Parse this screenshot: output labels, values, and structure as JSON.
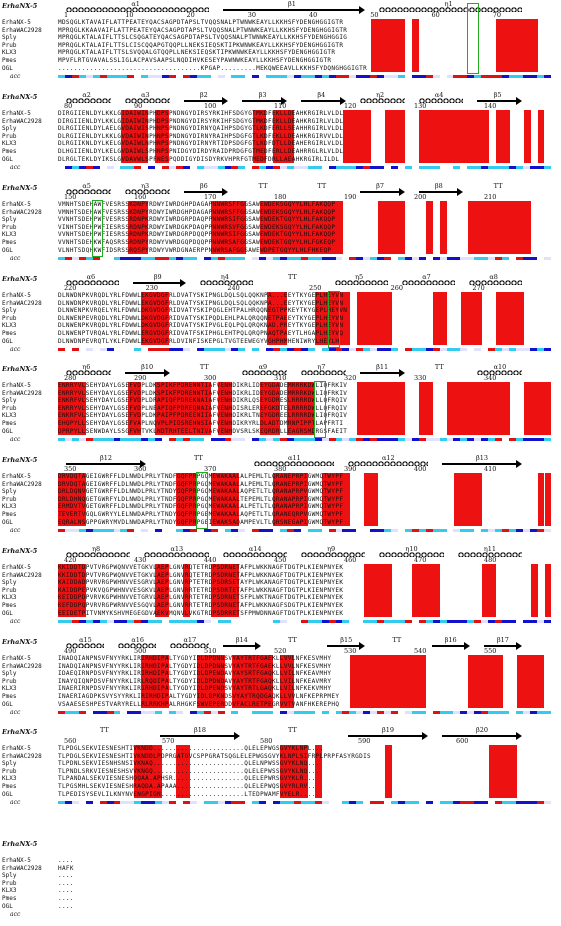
{
  "reference_label": "ErhaNX-5",
  "sequence_names": [
    "ErhaNX-5",
    "ErhaWAC2928",
    "Sply",
    "Prub",
    "KLX3",
    "Pmes",
    "OGL"
  ],
  "acc_label": "acc",
  "colors": {
    "identical_bg": "#e11111",
    "similar_text": "#d00000",
    "box": "#6e6ec8",
    "highlight": "#22aa22",
    "acc_high": "#1111cc",
    "acc_mid": "#33ccee",
    "acc_low": "#e0e0ff",
    "acc_buried": "#ffffff"
  },
  "blocks": [
    {
      "numbers": [
        "1",
        "10",
        "20",
        "30",
        "40",
        "50",
        "60",
        "70"
      ],
      "ss": [
        {
          "t": "helix",
          "label": "α1"
        },
        {
          "t": "arrow",
          "label": "β1"
        },
        {
          "t": "helix",
          "label": "η1"
        }
      ],
      "seqs": [
        "MDSQGLKTAVAIFLATTPEATEYQACSAGPDTAPSLTVQQSNALPTWNWKEAYLLKKHSFYDENGHGGIGTR",
        "MPRQGLKKAAVAIFLATTPEATEYQACSAGPDTAPSLTVQQSNALPTWNWKEAYLLKKHSFYDENGHGGIGTR",
        "MPRQGLKTALAIFLTTSLCSQGATEYQACSAGPDTAPSLTVQQSNALPTWNWKEAYLLKKHSFYDENGHGGIG",
        "MPRQGLKTALAIFLTTSLCISCQQAPGTQQPLLNEKSIEQSKTIPKWNWKEAYLLKKHSFYDENGHGGIGTR",
        "MPRQGLKTALAIFLTTSLSVQQALGTQQPLLNEKSIEQSKTIPKWNWKEAYLLKKHSFYDENGHGGIGTR",
        "MPVFLRTGVAVALSSLIGLACPAVSAAPSLNQDIHVKESEYPAWNWKEAYLLKKHSFYDENGHGGIGTR",
        "....................................KPGAP.........MEKQWEEAVLLKKHSFYDQNGHGGIGTR"
      ]
    },
    {
      "numbers": [
        "80",
        "90",
        "100",
        "110",
        "120",
        "130",
        "140"
      ],
      "ss": [
        {
          "t": "helix",
          "label": "α2"
        },
        {
          "t": "helix",
          "label": "α3"
        },
        {
          "t": "arrow",
          "label": "β2"
        },
        {
          "t": "arrow",
          "label": "β3"
        },
        {
          "t": "arrow",
          "label": "β4"
        },
        {
          "t": "helix",
          "label": "η2"
        },
        {
          "t": "helix",
          "label": "α4"
        },
        {
          "t": "arrow",
          "label": "β5"
        }
      ],
      "seqs": [
        "DIRGIIENLDYLKKLGIDAIWINPHDPSPNDNGYDIRSYRKIHFSDGYGTMKDFEKLLDEAHKRGIRLVLDL",
        "DIRGIIENLDYLKKLGIDAIWINPHDPSPNDNGYDIRSYRKIHFSDGYGTMKDFEKLLDEAHKRGIRLVLDL",
        "DLRGIIENLDYLAELGVDAIWISPHNPSPNDNGYDIRNYQAIHPSDGYGTLKDFERLLSEAHHRGIRLVLDL",
        "DLRGIIENLDYLKKLGVDAIWINPHNPSPNDNGYDIRNYRAIHPSDGFGTLKDFEKLLDEAHKRGIRVVLDL",
        "DLRGIIKNLDYLKELGVDAIWLNPHNPSPNDNGYDIRNYRTIDPSDGFGTLKDFDTLLDEAHERGIRLVLDL",
        "DLHGIIENLDYLKELGVDAIWLSPHNPSPNIDGYDIRDYRAIDPRDGFGTMEDFERLLDEAHRRGLRLVLDL",
        "DLRGLTEKLDYIKSLGVDAVWLSPFNESPQDDIGYDISDYRKVHPRFGTMEDFDRLLAEAHKRGIRLILDL"
      ]
    },
    {
      "numbers": [
        "150",
        "160",
        "170",
        "180",
        "190",
        "200",
        "210"
      ],
      "ss": [
        {
          "t": "helix",
          "label": "α5"
        },
        {
          "t": "helix",
          "label": "η3"
        },
        {
          "t": "arrow",
          "label": "β6"
        },
        {
          "t": "tt",
          "label": "TT"
        },
        {
          "t": "tt",
          "label": "TT"
        },
        {
          "t": "arrow",
          "label": "β7"
        },
        {
          "t": "arrow",
          "label": "β8"
        },
        {
          "t": "tt",
          "label": "TT"
        }
      ],
      "seqs": [
        "VMNHTSDEHAWFVESRSSKDNPYRDWYIWRDGHPDAGAPNNWRSFFGGSAWEWDEKSGQYYLHLFAKQQP",
        "VMNHTSDEHAWFVESRSSKDNPYRDWYIWRDGHPDAGAPNNWRSFFGGSAWEWDEKSGQYYLHLFAKQQP",
        "VVNHTSDEHPWFVESRSSRDNPKRDWYIWRDGRPDAQPPNNWRSIFGGSAWEWDEKTGQYYLHLFAKQQP",
        "VINHTSDEHPWFIESRSSRDNPKRDWYIWRDGKPDAQPPNNWRSVFGGSAWEWDEKSGQYYLHLFAKQQP",
        "VVNHTSDEHPWFIESRSSRDNPKRDWYIWRDGRPDQQPPNNWRSIFGGSAWEWDEKTGQYYLHLFAKQQP",
        "VVNHTSDEHKWFAQSRSSRDNPYRDWYVWRDGQPDQQPPNNWRSAFGGSAWEWDEKTGQYYLHLFGKEQP",
        "VLNHTSDQHKWFIDSRSSRQSPYRDWYVWRDGNAERPPNNWRSAFGGSAWEWDPETGQYYLHLFHKEQP"
      ]
    },
    {
      "numbers": [
        "220",
        "230",
        "240",
        "250",
        "260",
        "270"
      ],
      "ss": [
        {
          "t": "helix",
          "label": "α6"
        },
        {
          "t": "arrow",
          "label": "β9"
        },
        {
          "t": "helix",
          "label": "η4"
        },
        {
          "t": "tt",
          "label": "TT"
        },
        {
          "t": "helix",
          "label": "η5"
        },
        {
          "t": "helix",
          "label": "α7"
        },
        {
          "t": "helix",
          "label": "α8"
        }
      ],
      "seqs": [
        "DLNWDNPKVRQDLYRLFDWWLEKGVDGFRLDVATYSKIPNGLDQLSQLQQKNPA...EEYTKYGEPLHEYVN",
        "DLNWDNPKVRQDLYRLFDWWLEKGVDGFRLDVATYSKIPNGLDQLSQLQQKNPA...EEYTKYGEPLHEYVN",
        "DLNWENPKVRQELYRLFDWWLDKGVDGFRIDVATYSKIPQGLEHTPALHRQQNEGTPPKEYTKYGEPLHEYVN",
        "DLNWENPEVRQDLYRLFDWWLDKGVDGFRIDVATYSKIPQDLEHLPALQRQQNETPAEEYTKYGEPLHEYVN",
        "DLNWENPKVRQDLYRLFDWWLDKGVDGFRIDVATYSKIPVGLEQLPQLQRQKNAD.PREYTKYGEPLHEYVN",
        "DLNWENPTVRQALYRLFDWWLERGVDGFRIDVATFSKIPHGLEHTPQLQRQPNAQTPAEYTLHGAPLHEYVQ",
        "DLNWDNPEVRQTLYKLFDWWLEKGVDGFRLDVINFISKEPGLTVGTEEWEGYVGHPHMHENIWRYLHEYLH"
      ]
    },
    {
      "numbers": [
        "280",
        "290",
        "300",
        "310",
        "320",
        "330",
        "340"
      ],
      "ss": [
        {
          "t": "helix",
          "label": "η6"
        },
        {
          "t": "arrow",
          "label": "β10"
        },
        {
          "t": "tt",
          "label": "TT"
        },
        {
          "t": "helix",
          "label": "α9"
        },
        {
          "t": "helix",
          "label": "η7"
        },
        {
          "t": "arrow",
          "label": "β11"
        },
        {
          "t": "tt",
          "label": "TT"
        },
        {
          "t": "helix",
          "label": "α10"
        }
      ],
      "seqs": [
        "ENRRYVLSEHYDAYLGSEFVDPLDKSPIKFPDRENNTIAFVENHDIKRLIDEYGDADEMRRRKDWLIQFRKIV",
        "ENRRYVLSEHYDAYLGSEFVDPLDKSPIKFPDRENNTIAFVENHDIKRLIDEYGDADEMRRRKDWLIQFRKIV",
        "ENKRFVLSEHYDAYLGSEFVDPLDRAPIQFPDREKNAIAFVENHDIKRLQSEYGDRESLRRRRDWLLQFRQIV",
        "ENRRYVLSEHYDAYLGSEFVDPLNEAPIQFPDREQNAIAFVENHDISRLEREFGKDTELRRRRDWLLQFRQIV",
        "ENKRFVLSEHYDAYLGSEFVDPLDKPAIPFPDREENIIAFVENHDIKRLTNEYGDREELRRRRDWLIQFRQIV",
        "EHQPYLLSEHYDAYLGSEFVAPLNQVPLPIDSREHNSIAFVENHDIKRYRLDLADTDMRNPIPPTLAPFRTI",
        "DPRPYLLSENWDAYLSSGFVHTVKLNDTRHTEELTNIVAFVENHDVSRLSKEQRDRLLEAGRSMDRGSFAEIT"
      ]
    },
    {
      "numbers": [
        "350",
        "360",
        "370",
        "380",
        "390",
        "400",
        "410"
      ],
      "ss": [
        {
          "t": "arrow",
          "label": "β12"
        },
        {
          "t": "tt",
          "label": "TT"
        },
        {
          "t": "helix",
          "label": "α11"
        },
        {
          "t": "helix",
          "label": "α12"
        },
        {
          "t": "arrow",
          "label": "β13"
        }
      ],
      "seqs": [
        "DRVDQTAGEIGWRFFLDLNWDLPRLYTNDFGQFPRPGQMEWAKAALALPEMLTLQRANEPRPIGWMQTWYPF",
        "DRVDQTAGEIGWRFFLDLNWDLPRLYTNDFGQFPRPGQMEWAKAALALPEMLTLQRANEPRPIGWMQTWYPF",
        "DRLDQNVGETGWRFFLDLNWDLPRLYTNDYGQFPRPGQMEWAKAALAQPETLTLQRANAPRPVGWMQTWYPF",
        "DRLDHNQGETGWRFYLDLNWDLPRLYTNDFGQFPRPGQMEWAKAALTEPEMLTLQRANAPRPIGWMQTWYPF",
        "ERMDVTVGETGWRFFLDLNWDLPRLYTNDFGQFPRPGQMEWAKAALALPETLTLQRANAPRPIGWMQTWYPF",
        "TEVERTVGQLGWRYYLELNWDAPRLYTNDYGQFPRPGEMEWAKAALAQPETLTLQRANEQRPVGWMQTWYPF",
        "EQRALNSGPPGWRYMVDLNWDAPRLYTNDYGQFPRPGEIEWAKSAQAMPEVLTLQRSNEGAPIGWMQTWYPF"
      ]
    },
    {
      "numbers": [
        "420",
        "430",
        "440",
        "450",
        "460",
        "470",
        "480"
      ],
      "ss": [
        {
          "t": "helix",
          "label": "η8"
        },
        {
          "t": "helix",
          "label": "α13"
        },
        {
          "t": "helix",
          "label": "α14"
        },
        {
          "t": "helix",
          "label": "η9"
        },
        {
          "t": "helix",
          "label": "η10"
        },
        {
          "t": "helix",
          "label": "η11"
        }
      ],
      "seqs": [
        "KKIDDTDPVTVRGPWQNVVETGKVLAEPLGNVRQTETRDPSDRNETAFPLWKKNAGFTDGTPLKIENPNYEK",
        "KKIDDTDPVTVRGPWQNVVETGKVLAEPLGNVRQTETRDPSDRNETAFPLWKKNAGFTDGTPLKIENPNYEK",
        "KAIDDADPVRVRGPWHNVVESGRVLAEPLGNVRPTETRDPSDRSETAYPLWKANAGFTDGTPLKIENPNYEK",
        "KAIDDPEPVKVQGPWHNVVESGKVLAEPLGNVRRTETRDPSDRTETAFPLWKKNAGFTDGTPLKIENPNYEK",
        "KEIDDPDPVRVKGPWHNVVETGRVLAEPLGNVRRTETRDPSDRNETSFPLWKTNAGFTDGTPLKIENPNYEK",
        "KEFDDPQPVRVRGPWRNVVESGQVLAEPLGNVRRTETRDPSDRNETAFPLWKKNAGFSDGTPLKIENPNYEK",
        "EEIDETPITVNMYKSHVMEGEGDVAEKVMQNVLVKGTRDPSDRRETSFPMWDNNAGFTDGTPLKIENPNYEK"
      ]
    },
    {
      "numbers": [
        "490",
        "500",
        "510",
        "520",
        "530",
        "540",
        "550"
      ],
      "ss": [
        {
          "t": "helix",
          "label": "α15"
        },
        {
          "t": "helix",
          "label": "α16"
        },
        {
          "t": "helix",
          "label": "α17"
        },
        {
          "t": "arrow",
          "label": "β14"
        },
        {
          "t": "tt",
          "label": "TT"
        },
        {
          "t": "arrow",
          "label": "β15"
        },
        {
          "t": "tt",
          "label": "TT"
        },
        {
          "t": "arrow",
          "label": "β16"
        },
        {
          "t": "arrow",
          "label": "β17"
        }
      ],
      "seqs": [
        "INADQIANPNSVFNYYRKLIRIRHDIPALTYGDYIDLDPDNNSVYAYTRTFGAEKLLVVLNFKESVMHY",
        "INADQIANPNSVFNYYRKLIRIRHDIPALTYGDYIDLDPDNNSVYAYTRTFGAEKLLVVLNFKESVMHY",
        "IDAEQIRNPDSVFNYYRKLIRIRHDIPALTYGDYIDLDPENDAVYAYSRTFGAQKLLVILNFKEAVMHY",
        "INAYQIQNPDSVFNYYRKLIRLRQDIPALTYGDYIDLDPDNDAVYAYTRTFGAQKLLVILNFKEAVMRY",
        "INAERIRNPDSVFNYYRKLIRIRHDIPALTYGDYIDLDPENDSVYAYTRTLGAQKLLVILNFKEKVMHY",
        "INAERIAGDPKSVYSYYRKLIRIRHDIPALTYGDYIDLDPKNDSVYAYTRQDGAQKLLVVLNFKEPRPMEY",
        "VSAAESESHPESTVARYRELLRLRRKHPALRHGKFSWVEPERDDVFACLRETPEGRVVTVANFHKEREPHQ"
      ]
    },
    {
      "numbers": [
        "560",
        "570",
        "580",
        "590",
        "600"
      ],
      "ss": [
        {
          "t": "tt",
          "label": "TT"
        },
        {
          "t": "arrow",
          "label": "β18"
        },
        {
          "t": "tt",
          "label": "TT"
        },
        {
          "t": "arrow",
          "label": "β19"
        },
        {
          "t": "arrow",
          "label": "β20"
        }
      ],
      "seqs": [
        "TLPDGLSEKVIESNESHTIVKNDD.......................QLELEPWGSGVYKLNPL...",
        "TLPDGLSEKVIESNESHTIVKNDDLPDPRGATGVCSPPGRATSQGLELEPWGSGVYKLNPLSIFRPLPRPFASYRGDIS",
        "TLPDNLSEKVIESNHSNSIVKNAQ.......................QLELNPWSSGVYKLNQ...",
        "TLPNDLSRKVIESNESHSVVKNGQ.......................QLELEPWSSGVYKLNQ...",
        "TLPANDALSEKVIESNESHQQAA.APHSR..................QLELEPWRSGVYKLR...",
        "TLPGSMHLSEKVIESNESHRAQDA.APAAA.................QLELEPWQSGVYRLRV..",
        "TLPEDISYSEVLILKNYNVENGPIGN.....................LTEDPWAMFVYELR....."
      ]
    },
    {
      "numbers": [],
      "ss": [],
      "seqs": [
        "....",
        "HAFK",
        "....",
        "....",
        "....",
        "....",
        "...."
      ]
    }
  ]
}
